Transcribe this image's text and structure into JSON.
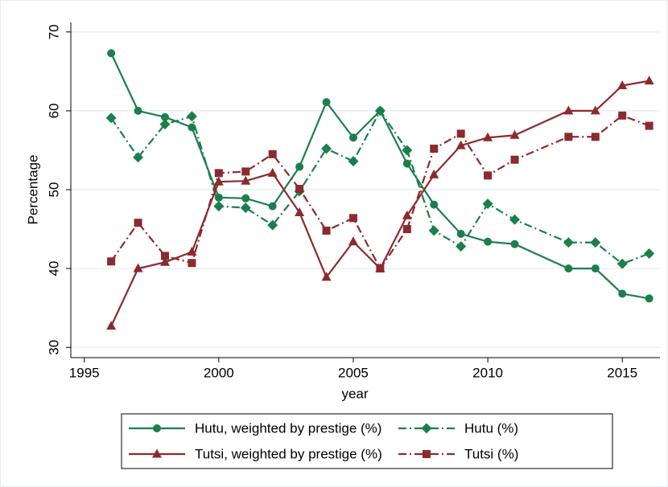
{
  "chart_data": {
    "type": "line",
    "x_label": "year",
    "y_label": "Percentage",
    "x": [
      1996,
      1997,
      1998,
      1999,
      2000,
      2001,
      2002,
      2003,
      2004,
      2005,
      2006,
      2007,
      2008,
      2009,
      2010,
      2011,
      2013,
      2014,
      2015,
      2016
    ],
    "series": [
      {
        "name": "Hutu, weighted by prestige (%)",
        "color": "#1b7f4c",
        "marker": "circle",
        "dash": "solid",
        "values": [
          67.3,
          60,
          59.2,
          57.9,
          49,
          48.9,
          47.9,
          52.9,
          61.1,
          56.6,
          60,
          53.3,
          48.1,
          44.4,
          43.4,
          43.1,
          40,
          40,
          36.8,
          36.2
        ]
      },
      {
        "name": "Hutu (%)",
        "color": "#1b7f4c",
        "marker": "diamond",
        "dash": "dashdot",
        "values": [
          59.1,
          54.1,
          58.3,
          59.3,
          47.9,
          47.7,
          45.5,
          49.8,
          55.2,
          53.6,
          60,
          55,
          44.8,
          42.8,
          48.2,
          46.2,
          43.3,
          43.3,
          40.6,
          41.9
        ]
      },
      {
        "name": "Tutsi, weighted by prestige (%)",
        "color": "#8c2a2e",
        "marker": "triangle",
        "dash": "solid",
        "values": [
          32.7,
          40,
          40.8,
          42.1,
          51,
          51.1,
          52.1,
          47.1,
          38.9,
          43.4,
          40,
          46.7,
          51.9,
          55.6,
          56.6,
          56.9,
          60,
          60,
          63.2,
          63.8
        ]
      },
      {
        "name": "Tutsi (%)",
        "color": "#8c2a2e",
        "marker": "square",
        "dash": "dashdot",
        "values": [
          40.9,
          45.8,
          41.6,
          40.7,
          52.1,
          52.3,
          54.5,
          50.1,
          44.8,
          46.4,
          40,
          45,
          55.2,
          57.1,
          51.8,
          53.8,
          56.7,
          56.7,
          59.4,
          58.1
        ]
      }
    ],
    "xlim": [
      1994.5,
      2016.4
    ],
    "xticks": [
      1995,
      2000,
      2005,
      2010,
      2015
    ],
    "ylim": [
      28.7,
      71.2
    ],
    "yticks": [
      30,
      40,
      50,
      60,
      70
    ],
    "grid": true,
    "legend": "bottom"
  }
}
